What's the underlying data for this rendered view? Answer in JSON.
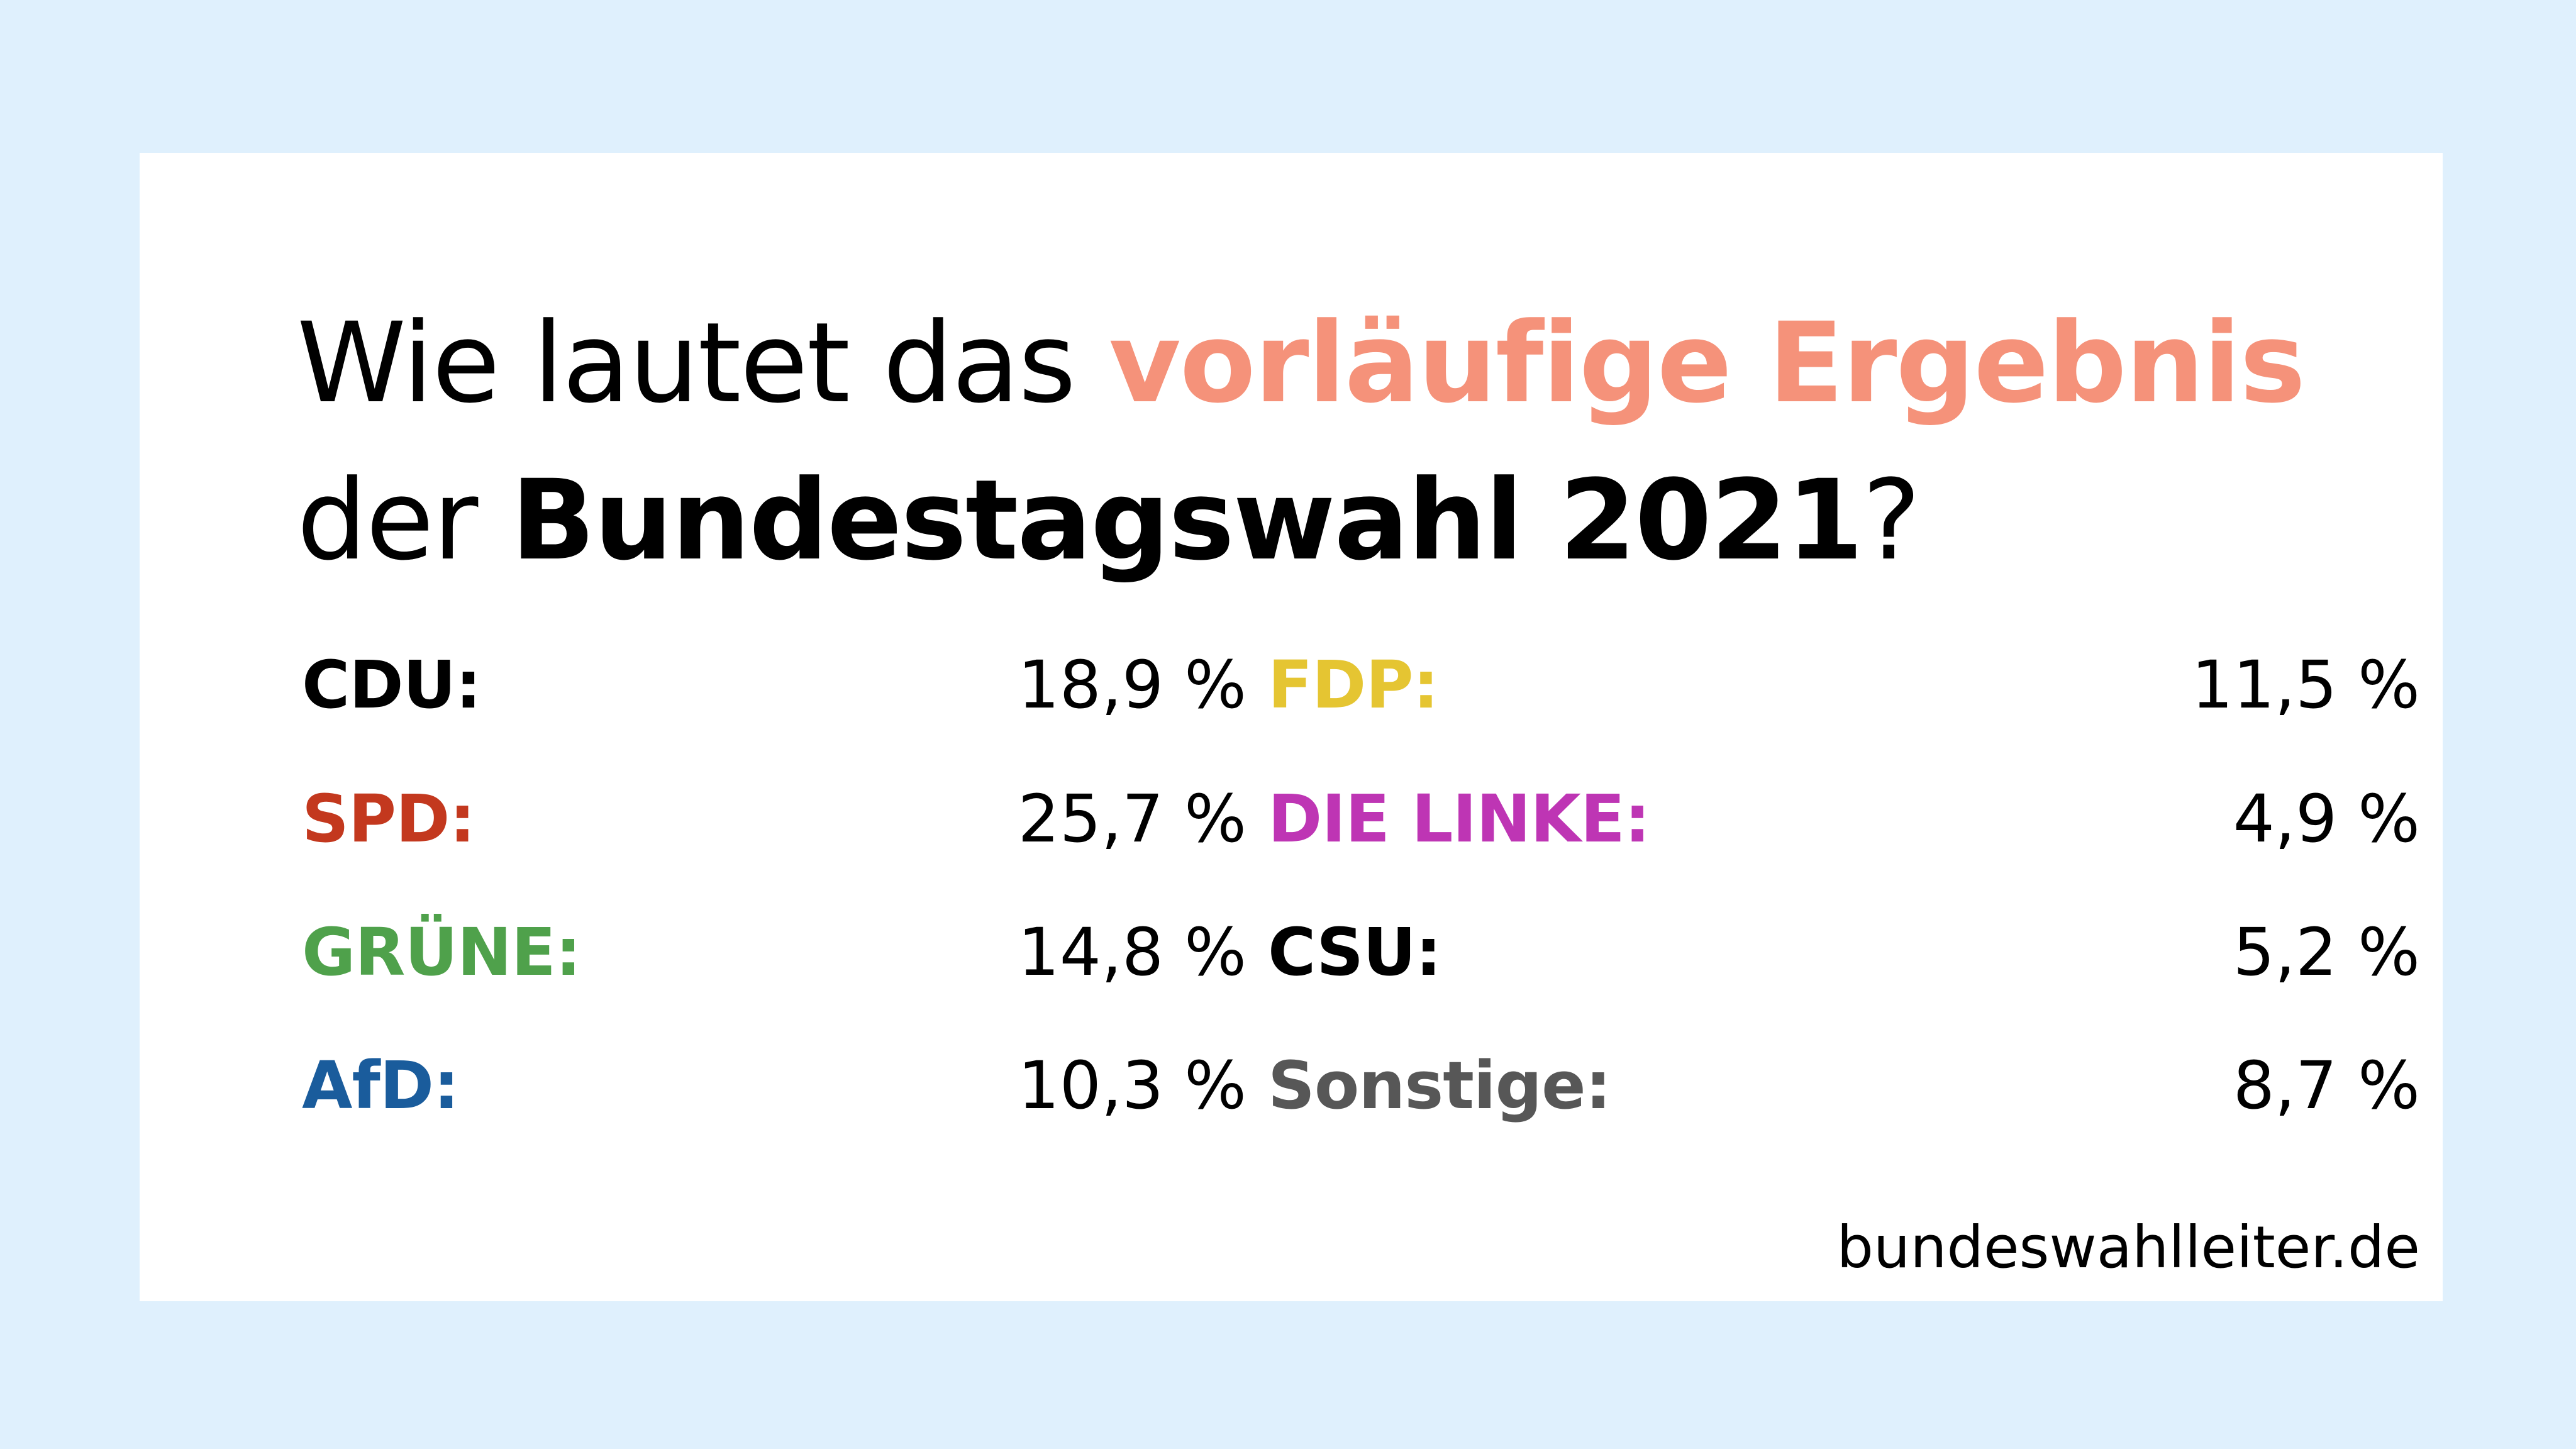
{
  "headline": {
    "line1_plain": "Wie lautet das ",
    "line1_accent": "vorläufige Ergebnis",
    "line2_plain": "der ",
    "line2_strong": "Bundestagswahl 2021",
    "line2_end": "?"
  },
  "colors": {
    "background": "#dff0fd",
    "card": "#ffffff",
    "accent": "#f5927a",
    "cdu": "#000000",
    "spd": "#c3381e",
    "gruene": "#4fa14b",
    "afd": "#1a5c9c",
    "fdp": "#e5c532",
    "linke": "#be35b4",
    "csu": "#000000",
    "sonstige": "#575757"
  },
  "results": {
    "left": [
      {
        "party": "CDU:",
        "value": "18,9 %"
      },
      {
        "party": "SPD:",
        "value": "25,7 %"
      },
      {
        "party": "GRÜNE:",
        "value": "14,8 %"
      },
      {
        "party": "AfD:",
        "value": "10,3 %"
      }
    ],
    "right": [
      {
        "party": "FDP:",
        "value": "11,5 %"
      },
      {
        "party": "DIE LINKE:",
        "value": "4,9 %"
      },
      {
        "party": "CSU:",
        "value": "5,2 %"
      },
      {
        "party": "Sonstige:",
        "value": "8,7 %"
      }
    ]
  },
  "footer": {
    "source": "bundeswahlleiter.de"
  }
}
